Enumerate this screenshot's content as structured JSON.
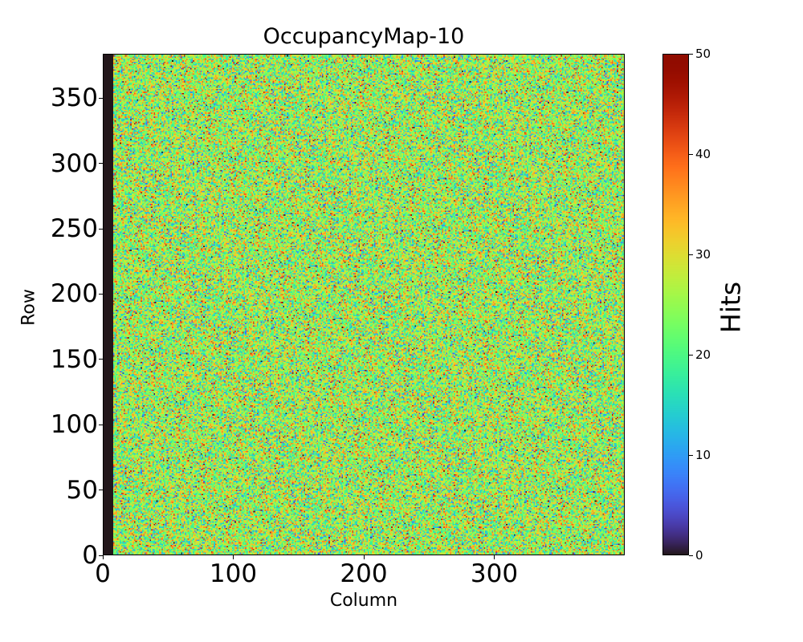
{
  "chart_data": {
    "type": "heatmap",
    "title": "OccupancyMap-10",
    "xlabel": "Column",
    "ylabel": "Row",
    "colorbar_label": "Hits",
    "colormap": "turbo",
    "n_columns": 400,
    "n_rows": 384,
    "xlim": [
      0,
      400
    ],
    "ylim": [
      0,
      384
    ],
    "clim": [
      0,
      50
    ],
    "xticks": [
      0,
      100,
      200,
      300
    ],
    "xtick_labels": [
      "0",
      "100",
      "200",
      "300"
    ],
    "yticks": [
      0,
      50,
      100,
      150,
      200,
      250,
      300,
      350
    ],
    "ytick_labels": [
      "0",
      "50",
      "100",
      "150",
      "200",
      "250",
      "300",
      "350"
    ],
    "cticks": [
      0,
      10,
      20,
      30,
      40,
      50
    ],
    "ctick_labels": [
      "0",
      "10",
      "20",
      "30",
      "40",
      "50"
    ],
    "value_distribution": {
      "mean": 25,
      "std": 8,
      "min": 0,
      "max": 50
    },
    "dead_columns": [
      0,
      7
    ],
    "dead_value": 0
  }
}
